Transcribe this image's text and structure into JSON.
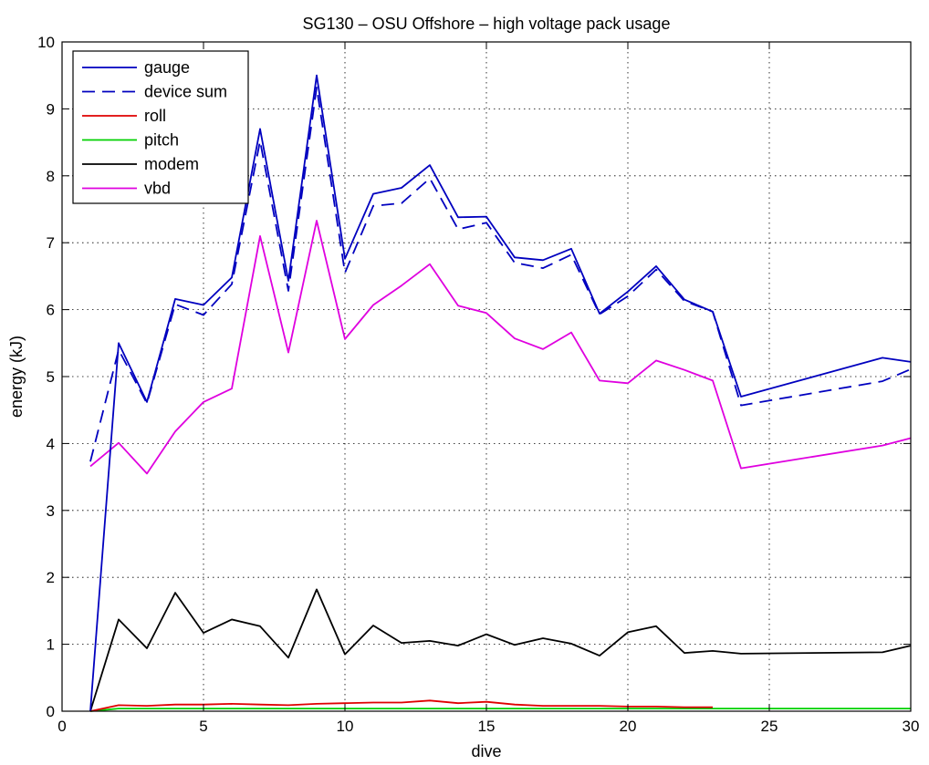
{
  "chart_data": {
    "type": "line",
    "title": "SG130 – OSU Offshore – high voltage pack usage",
    "xlabel": "dive",
    "ylabel": "energy (kJ)",
    "xlim": [
      0,
      30
    ],
    "ylim": [
      0,
      10
    ],
    "xticks": [
      0,
      5,
      10,
      15,
      20,
      25,
      30
    ],
    "yticks": [
      0,
      1,
      2,
      3,
      4,
      5,
      6,
      7,
      8,
      9,
      10
    ],
    "grid": true,
    "legend_position": "top-left",
    "series": [
      {
        "name": "gauge",
        "color": "#0000bf",
        "dash": "solid",
        "x": [
          1,
          2,
          3,
          4,
          5,
          6,
          7,
          8,
          9,
          10,
          11,
          12,
          13,
          14,
          15,
          16,
          17,
          18,
          19,
          20,
          21,
          22,
          23,
          24,
          29,
          30
        ],
        "y": [
          0,
          5.5,
          4.62,
          6.16,
          6.07,
          6.48,
          8.7,
          6.43,
          9.5,
          6.76,
          7.73,
          7.82,
          8.16,
          7.38,
          7.39,
          6.78,
          6.74,
          6.91,
          5.94,
          6.27,
          6.65,
          6.15,
          5.97,
          4.7,
          5.28,
          5.22
        ]
      },
      {
        "name": "device sum",
        "color": "#0000bf",
        "dash": "dashed",
        "x": [
          1,
          2,
          3,
          4,
          5,
          6,
          7,
          8,
          9,
          10,
          11,
          12,
          13,
          14,
          15,
          16,
          17,
          18,
          19,
          20,
          21,
          22,
          23,
          24,
          29,
          30
        ],
        "y": [
          3.73,
          5.4,
          4.6,
          6.08,
          5.92,
          6.38,
          8.52,
          6.28,
          9.32,
          6.55,
          7.55,
          7.59,
          7.96,
          7.2,
          7.3,
          6.7,
          6.62,
          6.82,
          5.93,
          6.2,
          6.6,
          6.13,
          5.97,
          4.57,
          4.93,
          5.11
        ]
      },
      {
        "name": "roll",
        "color": "#df0000",
        "dash": "solid",
        "x": [
          1,
          2,
          3,
          4,
          5,
          6,
          7,
          8,
          9,
          10,
          11,
          12,
          13,
          14,
          15,
          16,
          17,
          18,
          19,
          20,
          21,
          22,
          23
        ],
        "y": [
          0,
          0.09,
          0.08,
          0.1,
          0.1,
          0.11,
          0.1,
          0.09,
          0.11,
          0.12,
          0.13,
          0.13,
          0.16,
          0.12,
          0.14,
          0.1,
          0.08,
          0.08,
          0.08,
          0.07,
          0.07,
          0.06,
          0.06
        ]
      },
      {
        "name": "pitch",
        "color": "#00d000",
        "dash": "solid",
        "x": [
          1,
          2,
          3,
          4,
          5,
          6,
          7,
          8,
          9,
          10,
          11,
          12,
          13,
          14,
          15,
          16,
          17,
          18,
          19,
          20,
          21,
          22,
          23,
          24,
          29,
          30
        ],
        "y": [
          0,
          0.04,
          0.04,
          0.04,
          0.04,
          0.04,
          0.04,
          0.04,
          0.04,
          0.04,
          0.04,
          0.04,
          0.04,
          0.04,
          0.04,
          0.04,
          0.04,
          0.04,
          0.04,
          0.04,
          0.04,
          0.04,
          0.04,
          0.04,
          0.04,
          0.04
        ]
      },
      {
        "name": "modem",
        "color": "#000000",
        "dash": "solid",
        "x": [
          1,
          2,
          3,
          4,
          5,
          6,
          7,
          8,
          9,
          10,
          11,
          12,
          13,
          14,
          15,
          16,
          17,
          18,
          19,
          20,
          21,
          22,
          23,
          24,
          29,
          30
        ],
        "y": [
          0,
          1.37,
          0.94,
          1.77,
          1.17,
          1.37,
          1.27,
          0.8,
          1.82,
          0.85,
          1.28,
          1.02,
          1.05,
          0.98,
          1.15,
          0.99,
          1.09,
          1.01,
          0.83,
          1.18,
          1.27,
          0.87,
          0.9,
          0.86,
          0.88,
          0.98
        ]
      },
      {
        "name": "vbd",
        "color": "#df00df",
        "dash": "solid",
        "x": [
          1,
          2,
          3,
          4,
          5,
          6,
          7,
          8,
          9,
          10,
          11,
          12,
          13,
          14,
          15,
          16,
          17,
          18,
          19,
          20,
          21,
          22,
          23,
          24,
          29,
          30
        ],
        "y": [
          3.66,
          4.01,
          3.55,
          4.18,
          4.62,
          4.82,
          7.1,
          5.36,
          7.33,
          5.56,
          6.07,
          6.36,
          6.68,
          6.06,
          5.95,
          5.57,
          5.41,
          5.66,
          4.94,
          4.9,
          5.24,
          5.1,
          4.94,
          3.63,
          3.97,
          4.08
        ]
      }
    ]
  }
}
